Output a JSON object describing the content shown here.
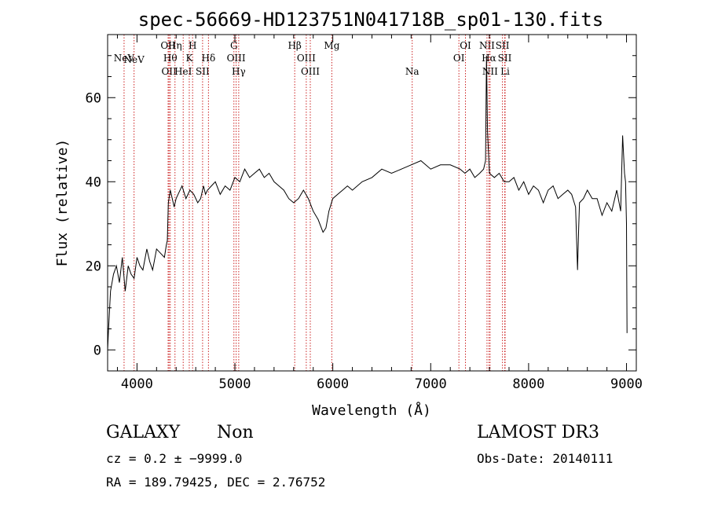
{
  "chart_data": {
    "type": "line",
    "title": "spec-56669-HD123751N041718B_sp01-130.fits",
    "xlabel": "Wavelength (Å)",
    "ylabel": "Flux (relative)",
    "xlim": [
      3700,
      9100
    ],
    "ylim": [
      -5,
      75
    ],
    "xticks": [
      4000,
      5000,
      6000,
      7000,
      8000,
      9000
    ],
    "yticks": [
      0,
      20,
      40,
      60
    ],
    "spectrum": {
      "x": [
        3700,
        3710,
        3730,
        3760,
        3790,
        3820,
        3850,
        3880,
        3910,
        3940,
        3970,
        4000,
        4030,
        4060,
        4100,
        4130,
        4160,
        4200,
        4240,
        4280,
        4300,
        4310,
        4320,
        4340,
        4360,
        4380,
        4400,
        4420,
        4460,
        4500,
        4540,
        4580,
        4620,
        4650,
        4680,
        4700,
        4720,
        4760,
        4800,
        4850,
        4900,
        4950,
        5000,
        5050,
        5100,
        5150,
        5200,
        5250,
        5300,
        5350,
        5400,
        5450,
        5500,
        5550,
        5600,
        5650,
        5700,
        5750,
        5800,
        5850,
        5900,
        5930,
        5960,
        6000,
        6050,
        6100,
        6150,
        6200,
        6300,
        6400,
        6500,
        6600,
        6700,
        6800,
        6900,
        7000,
        7100,
        7200,
        7300,
        7350,
        7400,
        7450,
        7500,
        7540,
        7560,
        7570,
        7580,
        7600,
        7650,
        7700,
        7750,
        7800,
        7850,
        7900,
        7950,
        8000,
        8050,
        8100,
        8150,
        8200,
        8250,
        8300,
        8350,
        8400,
        8440,
        8480,
        8500,
        8510,
        8520,
        8560,
        8600,
        8650,
        8700,
        8750,
        8800,
        8850,
        8900,
        8940,
        8960,
        8980,
        8990,
        9000,
        9005
      ],
      "y": [
        0,
        5,
        14,
        18,
        20,
        16,
        22,
        14,
        20,
        18,
        17,
        22,
        20,
        19,
        24,
        21,
        19,
        24,
        23,
        22,
        25,
        26,
        35,
        38,
        36,
        34,
        36,
        37,
        39,
        36,
        38,
        37,
        35,
        36,
        39,
        37,
        38,
        39,
        40,
        37,
        39,
        38,
        41,
        40,
        43,
        41,
        42,
        43,
        41,
        42,
        40,
        39,
        38,
        36,
        35,
        36,
        38,
        36,
        33,
        31,
        28,
        29,
        33,
        36,
        37,
        38,
        39,
        38,
        40,
        41,
        43,
        42,
        43,
        44,
        45,
        43,
        44,
        44,
        43,
        42,
        43,
        41,
        42,
        43,
        45,
        70,
        52,
        42,
        41,
        42,
        40,
        40,
        41,
        38,
        40,
        37,
        39,
        38,
        35,
        38,
        39,
        36,
        37,
        38,
        37,
        34,
        19,
        28,
        35,
        36,
        38,
        36,
        36,
        32,
        35,
        33,
        38,
        33,
        51,
        42,
        40,
        30,
        4
      ]
    },
    "lines": [
      {
        "name": "NeV",
        "x": 3868,
        "row": 1
      },
      {
        "name": "NeV",
        "x": 3970,
        "row": 2
      },
      {
        "name": "OII",
        "x": 4318,
        "row": 0
      },
      {
        "name": "OII",
        "x": 4327,
        "row": 3
      },
      {
        "name": "Hθ",
        "x": 4340,
        "row": 1
      },
      {
        "name": "Hη",
        "x": 4388,
        "row": 0
      },
      {
        "name": "HeI",
        "x": 4472,
        "row": 3
      },
      {
        "name": "K",
        "x": 4534,
        "row": 1
      },
      {
        "name": "H",
        "x": 4568,
        "row": 0
      },
      {
        "name": "SII",
        "x": 4670,
        "row": 3
      },
      {
        "name": "Hδ",
        "x": 4730,
        "row": 1
      },
      {
        "name": "G",
        "x": 4990,
        "row": 0
      },
      {
        "name": "OIII",
        "x": 5013,
        "row": 1
      },
      {
        "name": "Hγ",
        "x": 5039,
        "row": 3
      },
      {
        "name": "Hβ",
        "x": 5611,
        "row": 0
      },
      {
        "name": "OIII",
        "x": 5729,
        "row": 1
      },
      {
        "name": "OIII",
        "x": 5770,
        "row": 3
      },
      {
        "name": "Mg",
        "x": 5990,
        "row": 0
      },
      {
        "name": "Na",
        "x": 6811,
        "row": 3
      },
      {
        "name": "OI",
        "x": 7288,
        "row": 1
      },
      {
        "name": "OI",
        "x": 7355,
        "row": 0
      },
      {
        "name": "NII",
        "x": 7575,
        "row": 0
      },
      {
        "name": "Hα",
        "x": 7595,
        "row": 1
      },
      {
        "name": "NII",
        "x": 7607,
        "row": 3
      },
      {
        "name": "SII",
        "x": 7733,
        "row": 0
      },
      {
        "name": "SII",
        "x": 7756,
        "row": 1
      },
      {
        "name": "Li",
        "x": 7760,
        "row": 3
      }
    ]
  },
  "info": {
    "class": "GALAXY",
    "subclass": "Non",
    "survey": "LAMOST DR3",
    "cz": "cz = 0.2 ± −9999.0",
    "obs_date": "Obs-Date: 20140111",
    "radec": "RA = 189.79425, DEC =    2.76752"
  }
}
